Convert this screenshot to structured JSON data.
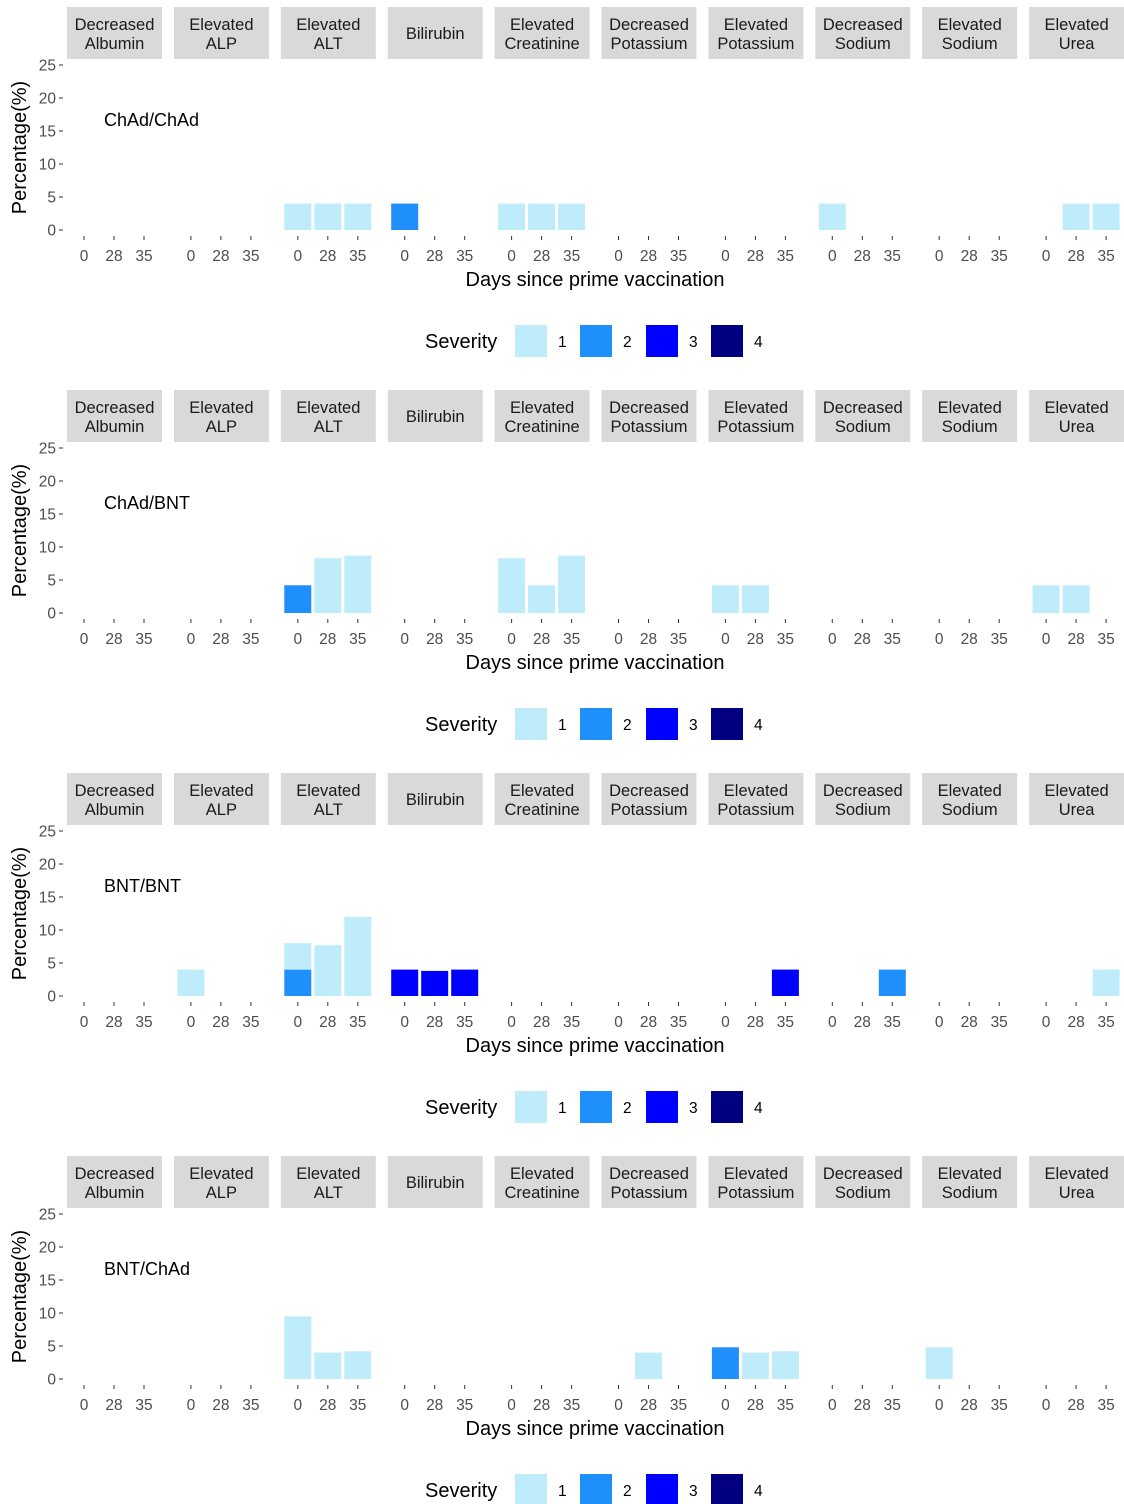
{
  "figure": {
    "xlabel": "Days since prime vaccination",
    "ylabel": "Percentage(%)",
    "legend_title": "Severity",
    "legend_placement": "bottom",
    "severity_levels": [
      "1",
      "2",
      "3",
      "4"
    ],
    "severity_colors": {
      "1": "#bfecfb",
      "2": "#1e8ffb",
      "3": "#0000ff",
      "4": "#000080"
    }
  },
  "chart_data": [
    {
      "type": "bar",
      "stacked": true,
      "group": "ChAd/ChAd",
      "facets": [
        "Decreased Albumin",
        "Elevated ALP",
        "Elevated ALT",
        "Bilirubin",
        "Elevated Creatinine",
        "Decreased Potassium",
        "Elevated Potassium",
        "Decreased Sodium",
        "Elevated Sodium",
        "Elevated Urea"
      ],
      "x_categories": [
        "0",
        "28",
        "35"
      ],
      "ylim": [
        0,
        25
      ],
      "yticks": [
        0,
        5,
        10,
        15,
        20,
        25
      ],
      "xlabel": "Days since prime vaccination",
      "ylabel": "Percentage(%)",
      "grid": false,
      "bars": [
        {
          "facet": "Elevated ALT",
          "x": "0",
          "severity": 1,
          "value": 4
        },
        {
          "facet": "Elevated ALT",
          "x": "28",
          "severity": 1,
          "value": 4
        },
        {
          "facet": "Elevated ALT",
          "x": "35",
          "severity": 1,
          "value": 4
        },
        {
          "facet": "Bilirubin",
          "x": "0",
          "severity": 2,
          "value": 4
        },
        {
          "facet": "Elevated Creatinine",
          "x": "0",
          "severity": 1,
          "value": 4
        },
        {
          "facet": "Elevated Creatinine",
          "x": "28",
          "severity": 1,
          "value": 4
        },
        {
          "facet": "Elevated Creatinine",
          "x": "35",
          "severity": 1,
          "value": 4
        },
        {
          "facet": "Decreased Sodium",
          "x": "0",
          "severity": 1,
          "value": 4
        },
        {
          "facet": "Elevated Urea",
          "x": "28",
          "severity": 1,
          "value": 4
        },
        {
          "facet": "Elevated Urea",
          "x": "35",
          "severity": 1,
          "value": 4
        }
      ]
    },
    {
      "type": "bar",
      "stacked": true,
      "group": "ChAd/BNT",
      "facets": [
        "Decreased Albumin",
        "Elevated ALP",
        "Elevated ALT",
        "Bilirubin",
        "Elevated Creatinine",
        "Decreased Potassium",
        "Elevated Potassium",
        "Decreased Sodium",
        "Elevated Sodium",
        "Elevated Urea"
      ],
      "x_categories": [
        "0",
        "28",
        "35"
      ],
      "ylim": [
        0,
        25
      ],
      "yticks": [
        0,
        5,
        10,
        15,
        20,
        25
      ],
      "xlabel": "Days since prime vaccination",
      "ylabel": "Percentage(%)",
      "grid": false,
      "bars": [
        {
          "facet": "Elevated ALT",
          "x": "0",
          "severity": 2,
          "value": 4.2
        },
        {
          "facet": "Elevated ALT",
          "x": "28",
          "severity": 1,
          "value": 8.3
        },
        {
          "facet": "Elevated ALT",
          "x": "35",
          "severity": 1,
          "value": 8.7
        },
        {
          "facet": "Elevated Creatinine",
          "x": "0",
          "severity": 1,
          "value": 8.3
        },
        {
          "facet": "Elevated Creatinine",
          "x": "28",
          "severity": 1,
          "value": 4.2
        },
        {
          "facet": "Elevated Creatinine",
          "x": "35",
          "severity": 1,
          "value": 8.7
        },
        {
          "facet": "Elevated Potassium",
          "x": "0",
          "severity": 1,
          "value": 4.2
        },
        {
          "facet": "Elevated Potassium",
          "x": "28",
          "severity": 1,
          "value": 4.2
        },
        {
          "facet": "Elevated Urea",
          "x": "0",
          "severity": 1,
          "value": 4.2
        },
        {
          "facet": "Elevated Urea",
          "x": "28",
          "severity": 1,
          "value": 4.2
        }
      ]
    },
    {
      "type": "bar",
      "stacked": true,
      "group": "BNT/BNT",
      "facets": [
        "Decreased Albumin",
        "Elevated ALP",
        "Elevated ALT",
        "Bilirubin",
        "Elevated Creatinine",
        "Decreased Potassium",
        "Elevated Potassium",
        "Decreased Sodium",
        "Elevated Sodium",
        "Elevated Urea"
      ],
      "x_categories": [
        "0",
        "28",
        "35"
      ],
      "ylim": [
        0,
        25
      ],
      "yticks": [
        0,
        5,
        10,
        15,
        20,
        25
      ],
      "xlabel": "Days since prime vaccination",
      "ylabel": "Percentage(%)",
      "grid": false,
      "bars": [
        {
          "facet": "Elevated ALP",
          "x": "0",
          "severity": 1,
          "value": 4
        },
        {
          "facet": "Elevated ALT",
          "x": "0",
          "severity": 2,
          "value": 4
        },
        {
          "facet": "Elevated ALT",
          "x": "0",
          "severity": 1,
          "value": 4
        },
        {
          "facet": "Elevated ALT",
          "x": "28",
          "severity": 1,
          "value": 7.7
        },
        {
          "facet": "Elevated ALT",
          "x": "35",
          "severity": 1,
          "value": 12
        },
        {
          "facet": "Bilirubin",
          "x": "0",
          "severity": 3,
          "value": 4
        },
        {
          "facet": "Bilirubin",
          "x": "28",
          "severity": 3,
          "value": 3.8
        },
        {
          "facet": "Bilirubin",
          "x": "35",
          "severity": 3,
          "value": 4
        },
        {
          "facet": "Elevated Potassium",
          "x": "35",
          "severity": 3,
          "value": 4
        },
        {
          "facet": "Decreased Sodium",
          "x": "35",
          "severity": 2,
          "value": 4
        },
        {
          "facet": "Elevated Urea",
          "x": "35",
          "severity": 1,
          "value": 4
        }
      ]
    },
    {
      "type": "bar",
      "stacked": true,
      "group": "BNT/ChAd",
      "facets": [
        "Decreased Albumin",
        "Elevated ALP",
        "Elevated ALT",
        "Bilirubin",
        "Elevated Creatinine",
        "Decreased Potassium",
        "Elevated Potassium",
        "Decreased Sodium",
        "Elevated Sodium",
        "Elevated Urea"
      ],
      "x_categories": [
        "0",
        "28",
        "35"
      ],
      "ylim": [
        0,
        25
      ],
      "yticks": [
        0,
        5,
        10,
        15,
        20,
        25
      ],
      "xlabel": "Days since prime vaccination",
      "ylabel": "Percentage(%)",
      "grid": false,
      "bars": [
        {
          "facet": "Elevated ALT",
          "x": "0",
          "severity": 1,
          "value": 9.5
        },
        {
          "facet": "Elevated ALT",
          "x": "28",
          "severity": 1,
          "value": 4
        },
        {
          "facet": "Elevated ALT",
          "x": "35",
          "severity": 1,
          "value": 4.2
        },
        {
          "facet": "Decreased Potassium",
          "x": "28",
          "severity": 1,
          "value": 4
        },
        {
          "facet": "Elevated Potassium",
          "x": "0",
          "severity": 2,
          "value": 4.8
        },
        {
          "facet": "Elevated Potassium",
          "x": "28",
          "severity": 1,
          "value": 4
        },
        {
          "facet": "Elevated Potassium",
          "x": "35",
          "severity": 1,
          "value": 4.2
        },
        {
          "facet": "Elevated Sodium",
          "x": "0",
          "severity": 1,
          "value": 4.8
        }
      ]
    }
  ]
}
